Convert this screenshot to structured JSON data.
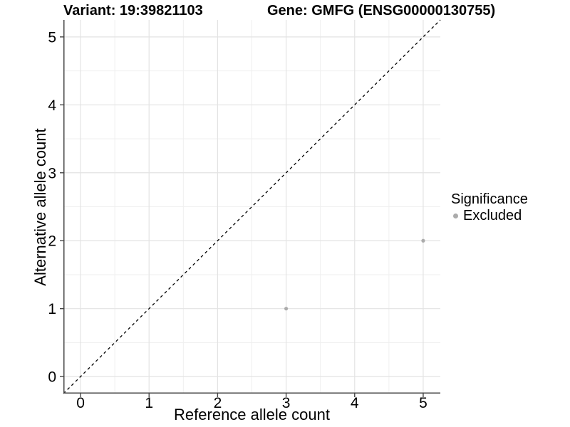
{
  "chart_data": {
    "type": "scatter",
    "titles": {
      "left": "Variant: 19:39821103",
      "right": "Gene: GMFG (ENSG00000130755)"
    },
    "xlabel": "Reference allele count",
    "ylabel": "Alternative allele count",
    "xlim": [
      -0.25,
      5.25
    ],
    "ylim": [
      -0.25,
      5.25
    ],
    "xticks": [
      0,
      1,
      2,
      3,
      4,
      5
    ],
    "yticks": [
      0,
      1,
      2,
      3,
      4,
      5
    ],
    "xminor": [
      0.5,
      1.5,
      2.5,
      3.5,
      4.5
    ],
    "yminor": [
      0.5,
      1.5,
      2.5,
      3.5,
      4.5
    ],
    "grid": "major+minor",
    "series": [
      {
        "name": "Excluded",
        "points": [
          {
            "x": 3,
            "y": 1
          },
          {
            "x": 5,
            "y": 2
          }
        ]
      }
    ],
    "reference_line": {
      "kind": "identity-diagonal",
      "style": "dashed"
    },
    "legend": {
      "position": "right",
      "title": "Significance",
      "items": [
        {
          "label": "Excluded",
          "color": "#ababab"
        }
      ]
    }
  },
  "colors": {
    "background": "#ffffff",
    "text": "#000000",
    "axis_line": "#464646",
    "tick_mark": "#464646",
    "grid_major": "#e3e3e3",
    "grid_minor": "#efefef",
    "point": "#ababab",
    "reference_line": "#000000"
  }
}
